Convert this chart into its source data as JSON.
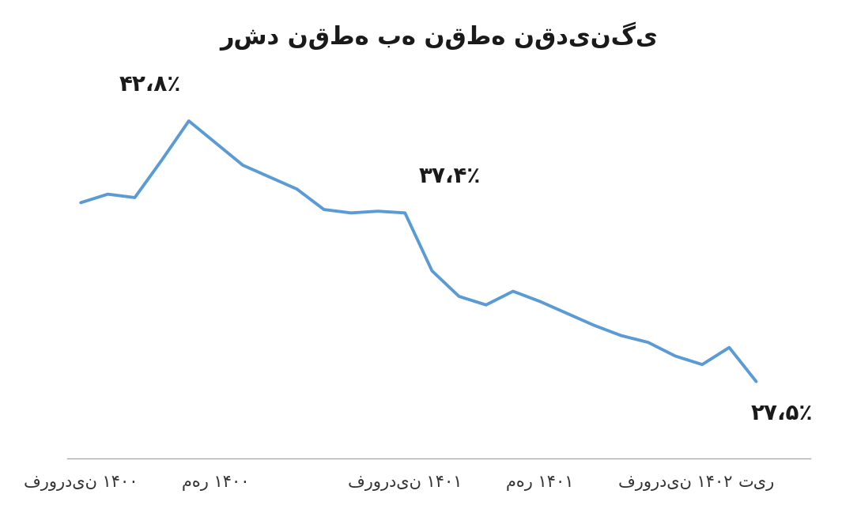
{
  "title": "رشد نقطه به نقطه نقدینگی",
  "line_color": "#5B9BD5",
  "line_width": 2.8,
  "background_color": "#ffffff",
  "y_values": [
    38.0,
    38.5,
    38.3,
    40.5,
    42.8,
    41.5,
    40.2,
    39.5,
    38.8,
    37.6,
    37.4,
    37.5,
    37.4,
    34.0,
    32.5,
    32.0,
    32.8,
    32.2,
    31.5,
    30.8,
    30.2,
    29.8,
    29.0,
    28.5,
    29.5,
    27.5
  ],
  "x_tick_positions": [
    0,
    5,
    12,
    17,
    22,
    25
  ],
  "x_tick_labels": [
    "فروردین ۱۴۰۰",
    "مهر ۱۴۰۰",
    "فروردین ۱۴۰۱",
    "مهر ۱۴۰۱",
    "فروردین ۱۴۰۲",
    "تیر"
  ],
  "ann42_x": 4,
  "ann42_y": 42.8,
  "ann42_label": "۴۲،۸٪",
  "ann37_x": 12,
  "ann37_y": 37.4,
  "ann37_label": "۳۷،۴٪",
  "ann27_x": 25,
  "ann27_y": 27.5,
  "ann27_label": "۲۷،۵٪",
  "ylim": [
    23,
    46
  ],
  "xlim": [
    -0.5,
    27
  ]
}
